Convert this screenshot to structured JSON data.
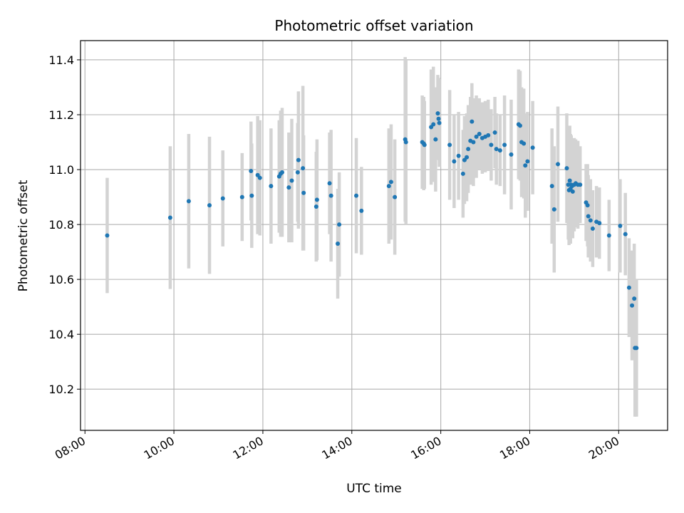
{
  "chart_data": {
    "type": "scatter",
    "title": "Photometric offset variation",
    "xlabel": "UTC time",
    "ylabel": "Photometric offset",
    "grid": true,
    "xlim": [
      "07:54",
      "21:06"
    ],
    "ylim": [
      10.05,
      11.47
    ],
    "x_ticks": [
      "08:00",
      "10:00",
      "12:00",
      "14:00",
      "16:00",
      "18:00",
      "20:00"
    ],
    "y_ticks": [
      "10.2",
      "10.4",
      "10.6",
      "10.8",
      "11.0",
      "11.2",
      "11.4"
    ],
    "colors": {
      "points": "#1f77b4",
      "errorbars": "#d3d3d3",
      "grid": "#b0b0b0"
    },
    "series": [
      {
        "x": [
          "08:30",
          "09:55",
          "10:20",
          "10:48",
          "11:06",
          "11:32",
          "11:44",
          "11:45",
          "11:53",
          "11:56",
          "12:11",
          "12:22",
          "12:24",
          "12:26",
          "12:35",
          "12:39",
          "12:47",
          "12:48",
          "12:54",
          "12:55",
          "13:12",
          "13:13",
          "13:30",
          "13:32",
          "13:41",
          "13:43",
          "14:06",
          "14:13",
          "14:50",
          "14:53",
          "14:58",
          "15:12",
          "15:13",
          "15:35",
          "15:37",
          "15:38",
          "15:47",
          "15:50",
          "15:53",
          "15:56",
          "15:57",
          "15:58",
          "16:12",
          "16:18",
          "16:24",
          "16:30",
          "16:32",
          "16:35",
          "16:37",
          "16:40",
          "16:42",
          "16:44",
          "16:48",
          "16:52",
          "16:56",
          "17:00",
          "17:04",
          "17:08",
          "17:13",
          "17:15",
          "17:20",
          "17:26",
          "17:35",
          "17:45",
          "17:47",
          "17:49",
          "17:52",
          "17:54",
          "17:57",
          "18:04",
          "18:30",
          "18:33",
          "18:38",
          "18:50",
          "18:52",
          "18:53",
          "18:54",
          "18:55",
          "18:56",
          "18:57",
          "18:58",
          "19:00",
          "19:02",
          "19:05",
          "19:08",
          "19:16",
          "19:18",
          "19:19",
          "19:22",
          "19:25",
          "19:30",
          "19:34",
          "19:47",
          "20:02",
          "20:09",
          "20:14",
          "20:18",
          "20:21",
          "20:22",
          "20:24"
        ],
        "y": [
          10.76,
          10.825,
          10.885,
          10.87,
          10.895,
          10.9,
          10.995,
          10.905,
          10.98,
          10.97,
          10.94,
          10.975,
          10.985,
          10.99,
          10.935,
          10.96,
          10.99,
          11.035,
          11.005,
          10.915,
          10.865,
          10.89,
          10.95,
          10.905,
          10.73,
          10.8,
          10.905,
          10.85,
          10.94,
          10.955,
          10.9,
          11.11,
          11.1,
          11.1,
          11.095,
          11.09,
          11.155,
          11.165,
          11.11,
          11.205,
          11.185,
          11.17,
          11.09,
          11.03,
          11.05,
          10.985,
          11.035,
          11.045,
          11.075,
          11.105,
          11.175,
          11.1,
          11.12,
          11.13,
          11.115,
          11.12,
          11.125,
          11.09,
          11.135,
          11.075,
          11.07,
          11.09,
          11.055,
          11.165,
          11.16,
          11.1,
          11.095,
          11.015,
          11.03,
          11.08,
          10.94,
          10.855,
          11.02,
          11.005,
          10.945,
          10.925,
          10.96,
          10.93,
          10.945,
          10.94,
          10.92,
          10.945,
          10.95,
          10.945,
          10.945,
          10.88,
          10.87,
          10.83,
          10.815,
          10.785,
          10.81,
          10.805,
          10.76,
          10.795,
          10.765,
          10.57,
          10.505,
          10.53,
          10.35,
          10.35
        ],
        "err": [
          0.21,
          0.26,
          0.245,
          0.25,
          0.175,
          0.16,
          0.18,
          0.19,
          0.215,
          0.21,
          0.21,
          0.205,
          0.23,
          0.235,
          0.2,
          0.225,
          0.18,
          0.25,
          0.3,
          0.21,
          0.2,
          0.22,
          0.185,
          0.24,
          0.2,
          0.19,
          0.21,
          0.16,
          0.21,
          0.21,
          0.21,
          0.3,
          0.3,
          0.17,
          0.17,
          0.16,
          0.21,
          0.21,
          0.19,
          0.14,
          0.15,
          0.16,
          0.2,
          0.17,
          0.16,
          0.16,
          0.16,
          0.16,
          0.16,
          0.16,
          0.14,
          0.16,
          0.15,
          0.13,
          0.13,
          0.13,
          0.13,
          0.13,
          0.13,
          0.13,
          0.13,
          0.18,
          0.2,
          0.2,
          0.2,
          0.2,
          0.2,
          0.19,
          0.18,
          0.17,
          0.21,
          0.23,
          0.21,
          0.2,
          0.2,
          0.2,
          0.2,
          0.2,
          0.18,
          0.17,
          0.17,
          0.17,
          0.16,
          0.16,
          0.14,
          0.14,
          0.15,
          0.15,
          0.15,
          0.14,
          0.13,
          0.13,
          0.13,
          0.17,
          0.15,
          0.18,
          0.2,
          0.2,
          0.25,
          0.25
        ]
      }
    ]
  }
}
